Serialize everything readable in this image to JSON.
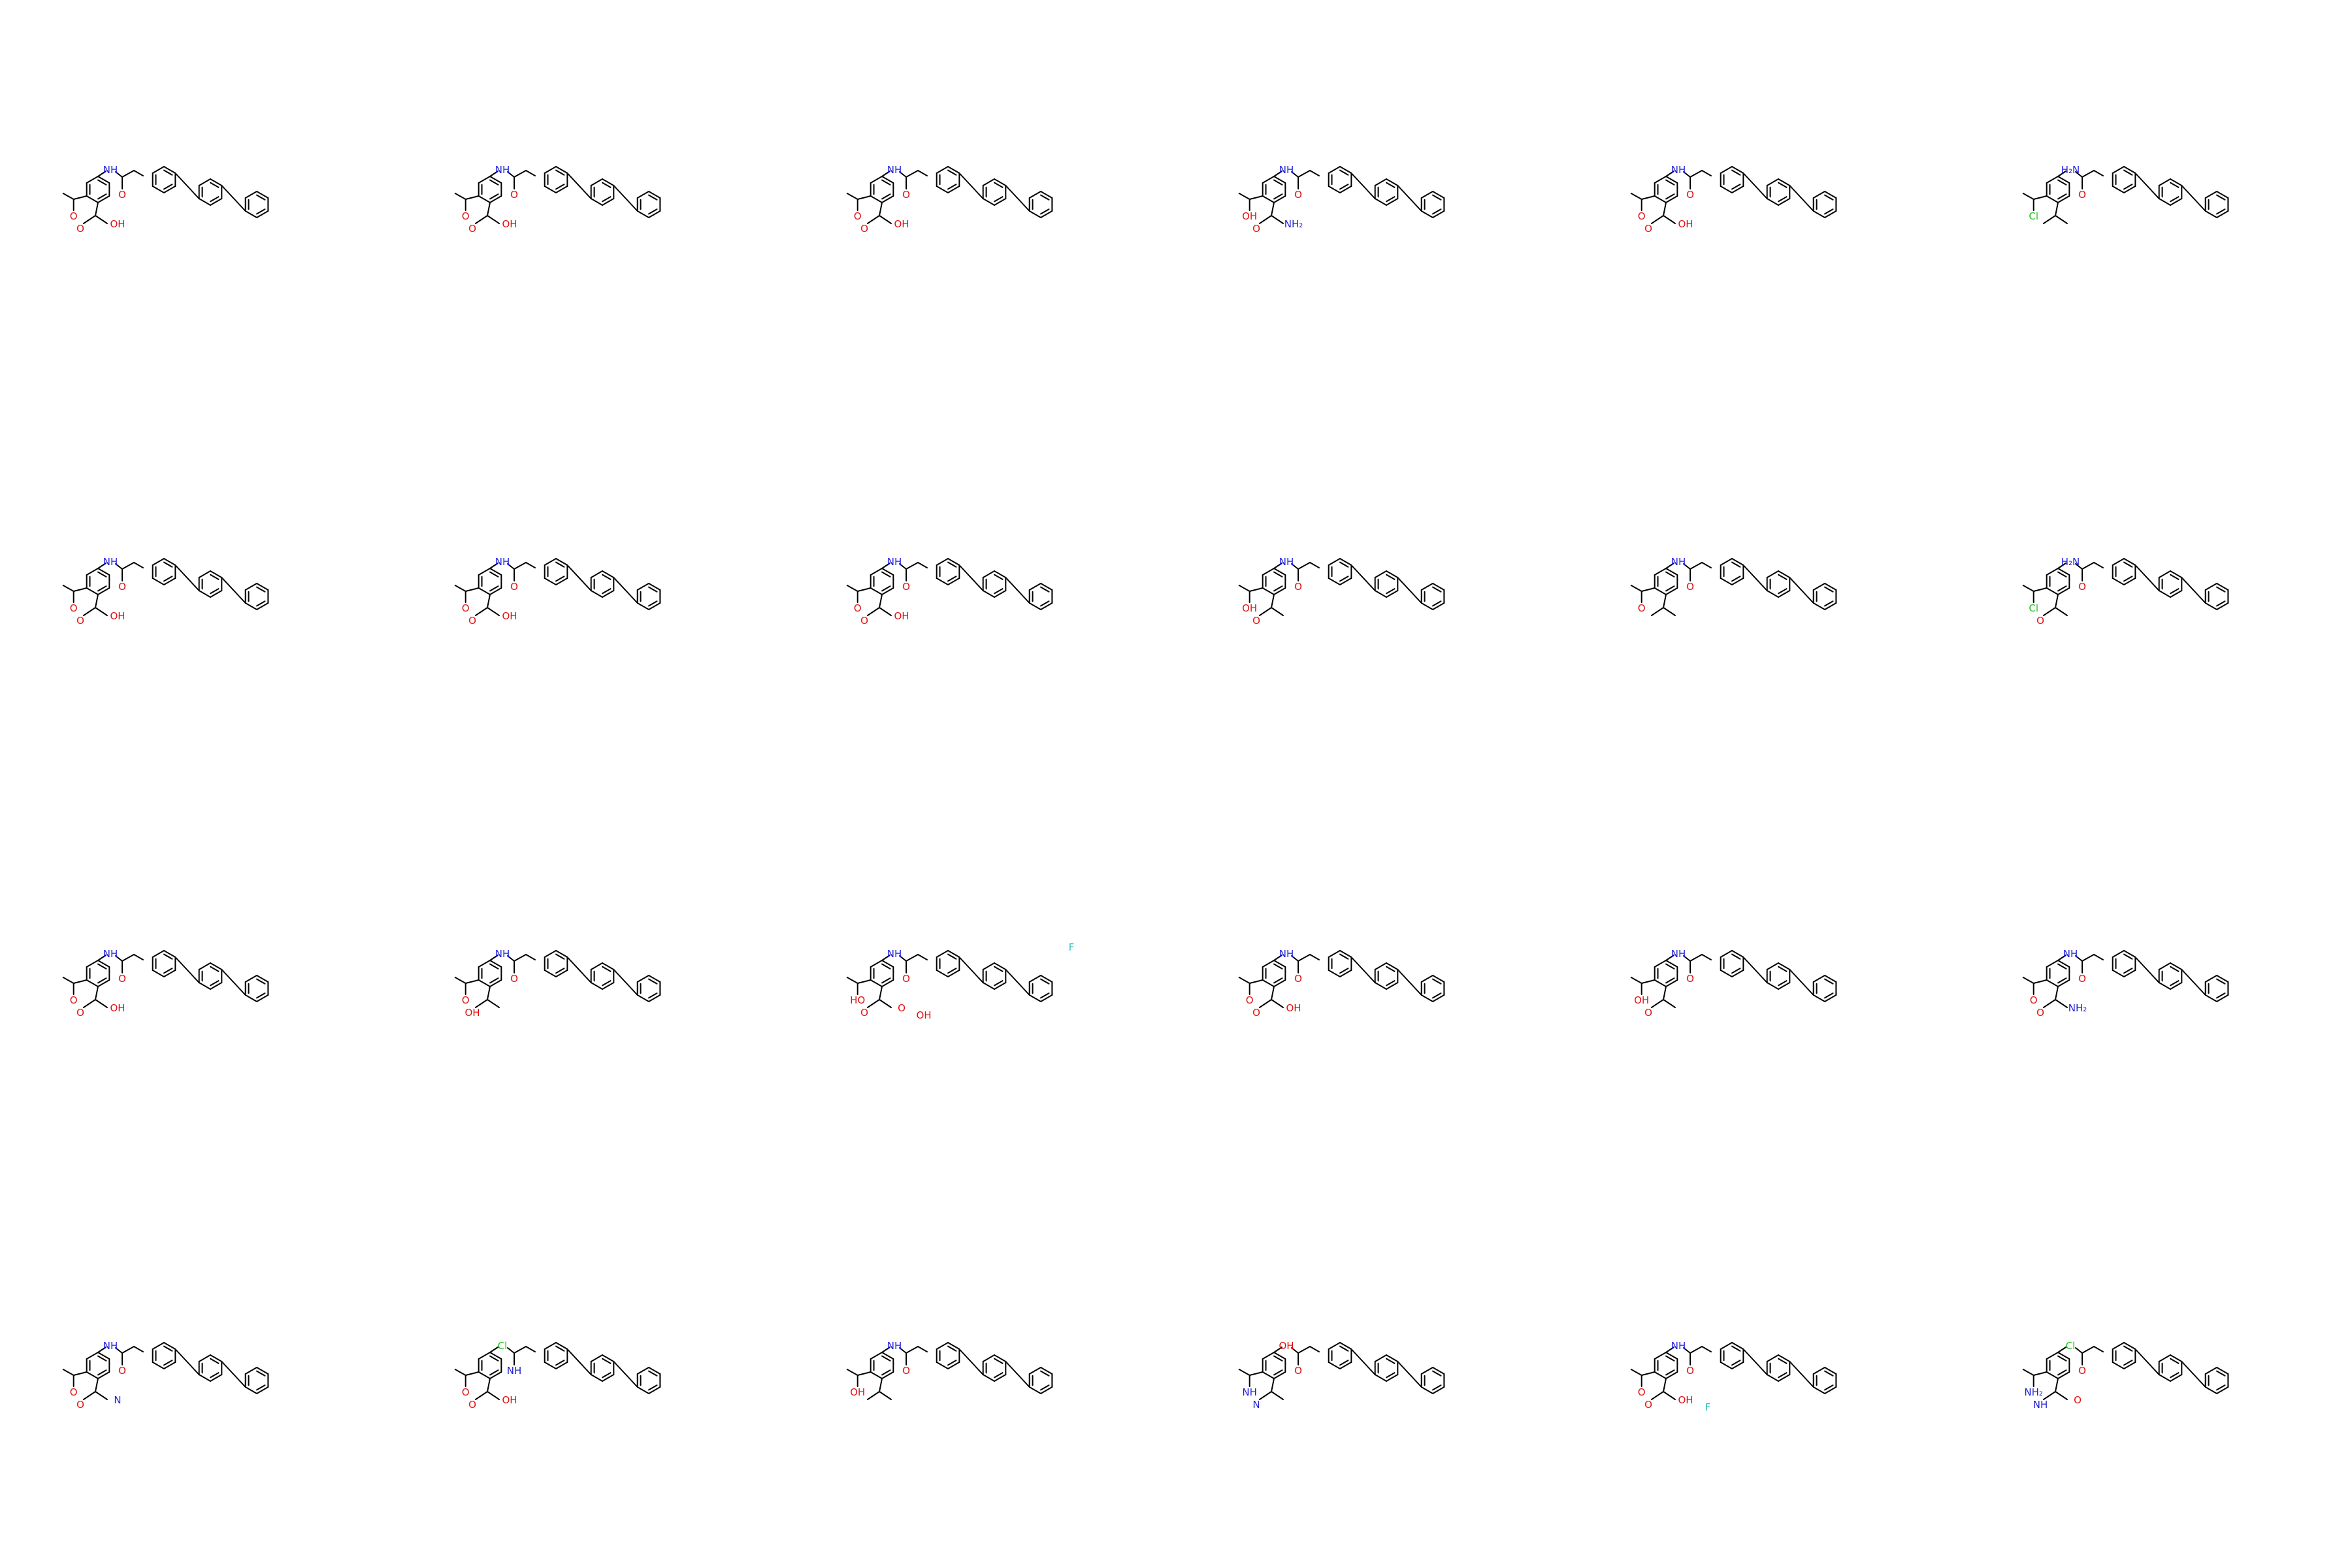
{
  "colors": {
    "bond": "#000000",
    "N": "#1f1fdb",
    "O": "#e01010",
    "Cl": "#1fc21f",
    "F": "#22bbbb"
  },
  "molecules": [
    {
      "row": 0,
      "col": 0,
      "left": "acetyl_acid",
      "right": "terphenyl",
      "labels": [
        "NH",
        "O",
        "O",
        "O",
        "OH"
      ]
    },
    {
      "row": 0,
      "col": 1,
      "left": "acetyl_acid",
      "right": "terphenyl",
      "labels": [
        "NH",
        "O",
        "O",
        "O",
        "OH"
      ]
    },
    {
      "row": 0,
      "col": 2,
      "left": "acetyl_acid",
      "right": "terphenyl",
      "labels": [
        "NH",
        "O",
        "O",
        "O",
        "OH"
      ]
    },
    {
      "row": 0,
      "col": 3,
      "left": "terphenyl_rev",
      "right": "amino_acid",
      "labels": [
        "NH",
        "O",
        "OH",
        "O",
        "NH₂"
      ]
    },
    {
      "row": 0,
      "col": 4,
      "left": "acetyl_acid",
      "right": "terphenyl",
      "labels": [
        "NH",
        "O",
        "O",
        "O",
        "OH"
      ]
    },
    {
      "row": 0,
      "col": 5,
      "left": "amide_cl",
      "right": "benzyl_biphenyl",
      "labels": [
        "H₂N",
        "O",
        "Cl"
      ]
    },
    {
      "row": 1,
      "col": 0,
      "left": "acetyl_acid",
      "right": "terphenyl",
      "labels": [
        "NH",
        "O",
        "O",
        "O",
        "OH"
      ]
    },
    {
      "row": 1,
      "col": 1,
      "left": "acetyl_acid",
      "right": "terphenyl",
      "labels": [
        "NH",
        "O",
        "O",
        "O",
        "OH"
      ]
    },
    {
      "row": 1,
      "col": 2,
      "left": "acetyl_acid",
      "right": "terphenyl",
      "labels": [
        "NH",
        "O",
        "O",
        "O",
        "OH"
      ]
    },
    {
      "row": 1,
      "col": 3,
      "left": "tolyl_terphenyl",
      "right": "propanoic",
      "labels": [
        "NH",
        "O",
        "OH",
        "O"
      ]
    },
    {
      "row": 1,
      "col": 4,
      "left": "acetyl_biphenyl",
      "right": "terphenyl",
      "labels": [
        "NH",
        "O",
        "O"
      ]
    },
    {
      "row": 1,
      "col": 5,
      "left": "amide_cl",
      "right": "phenoxy_biphenyl",
      "labels": [
        "H₂N",
        "O",
        "Cl",
        "O"
      ]
    },
    {
      "row": 2,
      "col": 0,
      "left": "acetyl_acid",
      "right": "terphenyl",
      "labels": [
        "NH",
        "O",
        "O",
        "O",
        "OH"
      ]
    },
    {
      "row": 2,
      "col": 1,
      "left": "tolyl_terphenyl",
      "right": "isobutyl_acid",
      "labels": [
        "NH",
        "O",
        "O",
        "OH"
      ]
    },
    {
      "row": 2,
      "col": 2,
      "left": "diacid",
      "right": "fluoro_terphenyl",
      "labels": [
        "NH",
        "O",
        "HO",
        "O",
        "O",
        "OH",
        "F"
      ]
    },
    {
      "row": 2,
      "col": 3,
      "left": "acetyl_acid",
      "right": "terphenyl",
      "labels": [
        "NH",
        "O",
        "O",
        "O",
        "OH"
      ]
    },
    {
      "row": 2,
      "col": 4,
      "left": "terphenyl_rev",
      "right": "ethyl_acid",
      "labels": [
        "NH",
        "O",
        "OH",
        "O"
      ]
    },
    {
      "row": 2,
      "col": 5,
      "left": "acetyl_amidophenyl",
      "right": "terphenyl",
      "labels": [
        "NH",
        "O",
        "O",
        "O",
        "NH₂"
      ]
    },
    {
      "row": 3,
      "col": 0,
      "left": "oxamide",
      "right": "terphenyl",
      "labels": [
        "NH",
        "O",
        "O",
        "O",
        "N"
      ]
    },
    {
      "row": 3,
      "col": 1,
      "left": "chlorobiphenyl_acid",
      "right": "terphenyl",
      "labels": [
        "Cl",
        "NH",
        "O",
        "O",
        "OH"
      ]
    },
    {
      "row": 3,
      "col": 2,
      "left": "terphenyl_rev",
      "right": "ethyl_hydroxybiphenyl",
      "labels": [
        "NH",
        "O",
        "OH"
      ]
    },
    {
      "row": 3,
      "col": 3,
      "left": "hydroxyterphenyl",
      "right": "imine_benzyl",
      "labels": [
        "OH",
        "O",
        "NH",
        "N"
      ]
    },
    {
      "row": 3,
      "col": 4,
      "left": "acetyl_acid",
      "right": "fluoro_terphenyl",
      "labels": [
        "NH",
        "O",
        "O",
        "O",
        "OH",
        "F"
      ]
    },
    {
      "row": 3,
      "col": 5,
      "left": "amide_cl",
      "right": "benzamide_propyl",
      "labels": [
        "Cl",
        "O",
        "NH₂",
        "NH",
        "O"
      ]
    }
  ]
}
